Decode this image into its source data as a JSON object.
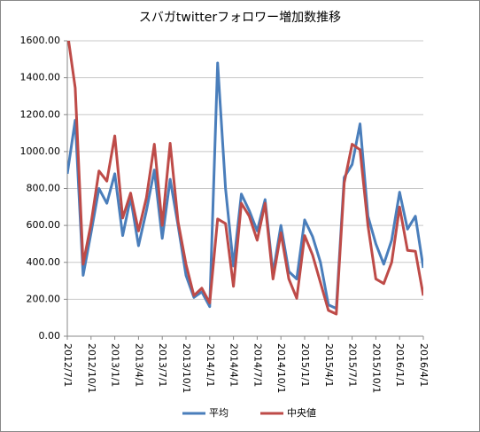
{
  "chart_data": {
    "type": "line",
    "title": "スバガtwitterフォロワー増加数推移",
    "categories": [
      "2012/7/1",
      null,
      null,
      "2012/10/1",
      null,
      null,
      "2013/1/1",
      null,
      null,
      "2013/4/1",
      null,
      null,
      "2013/7/1",
      null,
      null,
      "2013/10/1",
      null,
      null,
      "2014/1/1",
      null,
      null,
      "2014/4/1",
      null,
      null,
      "2014/7/1",
      null,
      null,
      "2014/10/1",
      null,
      null,
      "2015/1/1",
      null,
      null,
      "2015/4/1",
      null,
      null,
      "2015/7/1",
      null,
      null,
      "2015/10/1",
      null,
      null,
      "2016/1/1",
      null,
      null,
      "2016/4/1"
    ],
    "series": [
      {
        "name": "平均",
        "color": "#4a7ebb",
        "values": [
          880,
          1170,
          330,
          560,
          800,
          720,
          880,
          545,
          750,
          490,
          680,
          900,
          530,
          850,
          600,
          330,
          210,
          240,
          160,
          1480,
          800,
          380,
          770,
          680,
          570,
          740,
          340,
          600,
          350,
          310,
          630,
          540,
          400,
          170,
          150,
          860,
          930,
          1150,
          650,
          500,
          390,
          520,
          780,
          580,
          650,
          370
        ]
      },
      {
        "name": "中央値",
        "color": "#be4b48",
        "values": [
          1650,
          1345,
          390,
          610,
          895,
          840,
          1085,
          640,
          775,
          570,
          750,
          1040,
          600,
          1045,
          620,
          390,
          220,
          260,
          180,
          635,
          610,
          270,
          720,
          650,
          520,
          720,
          310,
          560,
          310,
          205,
          545,
          440,
          290,
          140,
          120,
          830,
          1040,
          1010,
          600,
          310,
          285,
          400,
          700,
          465,
          460,
          220
        ]
      }
    ],
    "ylim": [
      0,
      1600
    ],
    "yticks": [
      {
        "value": 0,
        "label": "0.00"
      },
      {
        "value": 200,
        "label": "200.00"
      },
      {
        "value": 400,
        "label": "400.00"
      },
      {
        "value": 600,
        "label": "600.00"
      },
      {
        "value": 800,
        "label": "800.00"
      },
      {
        "value": 1000,
        "label": "1000.00"
      },
      {
        "value": 1200,
        "label": "1200.00"
      },
      {
        "value": 1400,
        "label": "1400.00"
      },
      {
        "value": 1600,
        "label": "1600.00"
      }
    ],
    "grid": true,
    "legend": "bottom"
  }
}
